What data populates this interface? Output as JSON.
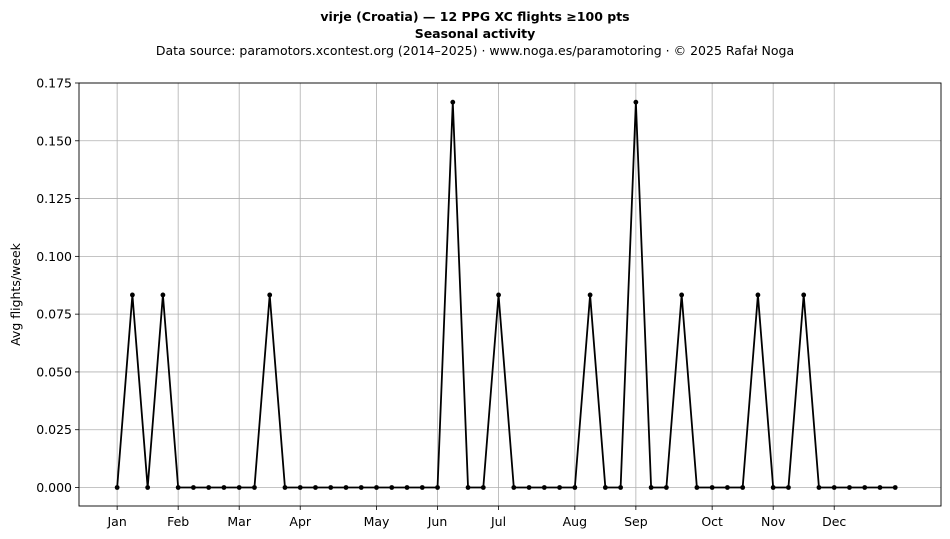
{
  "title_line1": "virje (Croatia)  —  12 PPG XC flights ≥100 pts",
  "title_line2": "Seasonal activity",
  "title_line3": "Data source: paramotors.xcontest.org (2014–2025)  ·  www.noga.es/paramotoring  ·  © 2025 Rafał Noga",
  "chart_data": {
    "type": "line",
    "ylabel": "Avg flights/week",
    "ylim": [
      -0.008,
      0.175
    ],
    "yticks": [
      "0.000",
      "0.025",
      "0.050",
      "0.075",
      "0.100",
      "0.125",
      "0.150",
      "0.175"
    ],
    "ytick_values": [
      0,
      0.025,
      0.05,
      0.075,
      0.1,
      0.125,
      0.15,
      0.175
    ],
    "xlim": [
      -2.5,
      54
    ],
    "xtick_labels": [
      "Jan",
      "Feb",
      "Mar",
      "Apr",
      "May",
      "Jun",
      "Jul",
      "Aug",
      "Sep",
      "Oct",
      "Nov",
      "Dec"
    ],
    "xtick_weeks": [
      0,
      4,
      8,
      12,
      17,
      21,
      25,
      30,
      34,
      39,
      43,
      47
    ],
    "grid": true,
    "line_color": "#000000",
    "series": [
      {
        "weeks": [
          0,
          1,
          2,
          3,
          4,
          5,
          6,
          7,
          8,
          9,
          10,
          11,
          12,
          13,
          14,
          15,
          16,
          17,
          18,
          19,
          20,
          21,
          22,
          23,
          24,
          25,
          26,
          27,
          28,
          29,
          30,
          31,
          32,
          33,
          34,
          35,
          36,
          37,
          38,
          39,
          40,
          41,
          42,
          43,
          44,
          45,
          46,
          47,
          48,
          49,
          50,
          51
        ],
        "values": [
          0,
          0.0833,
          0,
          0.0833,
          0,
          0,
          0,
          0,
          0,
          0,
          0.0833,
          0,
          0,
          0,
          0,
          0,
          0,
          0,
          0,
          0,
          0,
          0,
          0.1667,
          0,
          0,
          0.0833,
          0,
          0,
          0,
          0,
          0,
          0.0833,
          0,
          0,
          0.1667,
          0,
          0,
          0.0833,
          0,
          0,
          0,
          0,
          0.0833,
          0,
          0,
          0.0833,
          0,
          0,
          0,
          0,
          0,
          0
        ]
      }
    ]
  }
}
